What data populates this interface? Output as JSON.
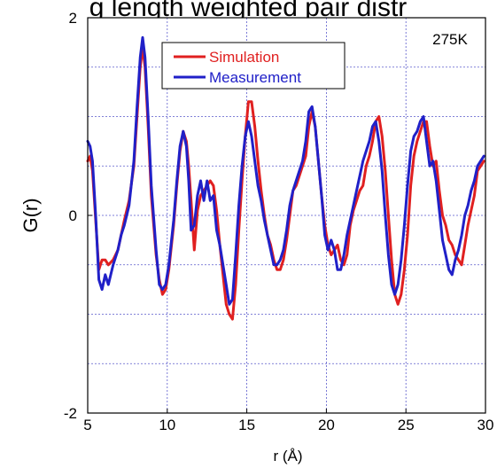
{
  "chart_data": {
    "type": "line",
    "title": "g length weighted pair distr",
    "xlabel": "r (Å)",
    "ylabel": "G(r)",
    "xlim": [
      5,
      30
    ],
    "ylim": [
      -2,
      2
    ],
    "xticks": [
      5,
      10,
      15,
      20,
      25,
      30
    ],
    "xtick_labels": [
      "5",
      "10",
      "15",
      "20",
      "25",
      "30"
    ],
    "yticks": [
      -2,
      0,
      2
    ],
    "ytick_labels": [
      "-2",
      "0",
      "2"
    ],
    "grid": true,
    "grid_x_step": 5,
    "grid_y_step": 0.5,
    "legend_placement": "top-center",
    "annotation": "275K",
    "series": [
      {
        "name": "Simulation",
        "color": "#e02020",
        "x": [
          5,
          5.15,
          5.3,
          5.5,
          5.7,
          5.9,
          6.1,
          6.3,
          6.6,
          6.9,
          7.1,
          7.3,
          7.6,
          7.9,
          8.1,
          8.3,
          8.45,
          8.6,
          8.8,
          9.0,
          9.3,
          9.5,
          9.7,
          9.9,
          10.1,
          10.4,
          10.6,
          10.8,
          11.0,
          11.2,
          11.35,
          11.5,
          11.7,
          11.9,
          12.1,
          12.3,
          12.5,
          12.7,
          12.9,
          13.1,
          13.3,
          13.5,
          13.7,
          13.9,
          14.1,
          14.3,
          14.5,
          14.7,
          14.9,
          15.1,
          15.3,
          15.5,
          15.7,
          15.9,
          16.1,
          16.3,
          16.5,
          16.7,
          16.9,
          17.1,
          17.3,
          17.5,
          17.7,
          17.9,
          18.1,
          18.3,
          18.5,
          18.7,
          18.9,
          19.1,
          19.3,
          19.5,
          19.7,
          19.9,
          20.1,
          20.3,
          20.5,
          20.7,
          20.9,
          21.1,
          21.3,
          21.5,
          21.7,
          21.9,
          22.1,
          22.3,
          22.5,
          22.7,
          22.9,
          23.1,
          23.3,
          23.5,
          23.7,
          23.9,
          24.1,
          24.3,
          24.5,
          24.7,
          24.9,
          25.1,
          25.3,
          25.5,
          25.7,
          25.9,
          26.1,
          26.3,
          26.5,
          26.7,
          26.9,
          27.1,
          27.3,
          27.5,
          27.7,
          27.9,
          28.1,
          28.3,
          28.5,
          28.7,
          28.9,
          29.1,
          29.3,
          29.5,
          29.7,
          29.9
        ],
        "y": [
          0.55,
          0.6,
          0.45,
          -0.05,
          -0.55,
          -0.45,
          -0.45,
          -0.5,
          -0.45,
          -0.35,
          -0.2,
          -0.05,
          0.15,
          0.5,
          1.0,
          1.5,
          1.7,
          1.5,
          0.9,
          0.2,
          -0.4,
          -0.65,
          -0.8,
          -0.75,
          -0.55,
          -0.1,
          0.3,
          0.65,
          0.85,
          0.75,
          0.5,
          0.15,
          -0.35,
          0.05,
          0.2,
          0.25,
          0.3,
          0.35,
          0.3,
          0.05,
          -0.3,
          -0.6,
          -0.9,
          -1.0,
          -1.05,
          -0.7,
          -0.15,
          0.35,
          0.8,
          1.15,
          1.15,
          0.9,
          0.55,
          0.25,
          0.0,
          -0.2,
          -0.3,
          -0.45,
          -0.55,
          -0.55,
          -0.45,
          -0.25,
          0.0,
          0.25,
          0.3,
          0.4,
          0.5,
          0.6,
          0.9,
          1.05,
          0.9,
          0.55,
          0.2,
          -0.1,
          -0.3,
          -0.4,
          -0.35,
          -0.3,
          -0.45,
          -0.5,
          -0.4,
          -0.1,
          0.05,
          0.15,
          0.25,
          0.3,
          0.5,
          0.6,
          0.75,
          0.95,
          1.0,
          0.8,
          0.45,
          0.0,
          -0.45,
          -0.8,
          -0.9,
          -0.8,
          -0.55,
          -0.2,
          0.3,
          0.6,
          0.75,
          0.85,
          0.95,
          0.95,
          0.7,
          0.5,
          0.55,
          0.25,
          0.0,
          -0.1,
          -0.25,
          -0.3,
          -0.4,
          -0.45,
          -0.5,
          -0.3,
          -0.1,
          0.05,
          0.2,
          0.45,
          0.5,
          0.55
        ]
      },
      {
        "name": "Measurement",
        "color": "#2020c8",
        "x": [
          5,
          5.15,
          5.3,
          5.5,
          5.7,
          5.9,
          6.1,
          6.3,
          6.6,
          6.9,
          7.1,
          7.3,
          7.6,
          7.9,
          8.1,
          8.3,
          8.45,
          8.6,
          8.8,
          9.0,
          9.3,
          9.5,
          9.7,
          9.9,
          10.1,
          10.4,
          10.6,
          10.8,
          11.0,
          11.2,
          11.35,
          11.5,
          11.7,
          11.9,
          12.1,
          12.3,
          12.5,
          12.7,
          12.9,
          13.1,
          13.3,
          13.5,
          13.7,
          13.9,
          14.1,
          14.3,
          14.5,
          14.7,
          14.9,
          15.1,
          15.3,
          15.5,
          15.7,
          15.9,
          16.1,
          16.3,
          16.5,
          16.7,
          16.9,
          17.1,
          17.3,
          17.5,
          17.7,
          17.9,
          18.1,
          18.3,
          18.5,
          18.7,
          18.9,
          19.1,
          19.3,
          19.5,
          19.7,
          19.9,
          20.1,
          20.3,
          20.5,
          20.7,
          20.9,
          21.1,
          21.3,
          21.5,
          21.7,
          21.9,
          22.1,
          22.3,
          22.5,
          22.7,
          22.9,
          23.1,
          23.3,
          23.5,
          23.7,
          23.9,
          24.1,
          24.3,
          24.5,
          24.7,
          24.9,
          25.1,
          25.3,
          25.5,
          25.7,
          25.9,
          26.1,
          26.3,
          26.5,
          26.7,
          26.9,
          27.1,
          27.3,
          27.5,
          27.7,
          27.9,
          28.1,
          28.3,
          28.5,
          28.7,
          28.9,
          29.1,
          29.3,
          29.5,
          29.7,
          29.9
        ],
        "y": [
          0.75,
          0.7,
          0.55,
          0.0,
          -0.65,
          -0.75,
          -0.6,
          -0.7,
          -0.5,
          -0.35,
          -0.2,
          -0.1,
          0.1,
          0.55,
          1.1,
          1.6,
          1.8,
          1.6,
          1.0,
          0.3,
          -0.35,
          -0.7,
          -0.75,
          -0.7,
          -0.5,
          -0.05,
          0.35,
          0.7,
          0.85,
          0.7,
          0.35,
          -0.15,
          -0.1,
          0.2,
          0.35,
          0.15,
          0.35,
          0.15,
          0.2,
          -0.15,
          -0.3,
          -0.5,
          -0.7,
          -0.9,
          -0.85,
          -0.4,
          0.1,
          0.5,
          0.8,
          0.95,
          0.8,
          0.55,
          0.3,
          0.15,
          -0.05,
          -0.2,
          -0.35,
          -0.5,
          -0.5,
          -0.45,
          -0.35,
          -0.15,
          0.1,
          0.25,
          0.35,
          0.45,
          0.55,
          0.75,
          1.05,
          1.1,
          0.9,
          0.55,
          0.2,
          -0.2,
          -0.35,
          -0.25,
          -0.35,
          -0.55,
          -0.55,
          -0.4,
          -0.2,
          -0.05,
          0.1,
          0.25,
          0.4,
          0.55,
          0.65,
          0.75,
          0.9,
          0.95,
          0.75,
          0.45,
          0.0,
          -0.4,
          -0.7,
          -0.8,
          -0.7,
          -0.45,
          -0.1,
          0.3,
          0.65,
          0.8,
          0.85,
          0.95,
          1.0,
          0.75,
          0.5,
          0.55,
          0.35,
          0.05,
          -0.25,
          -0.4,
          -0.55,
          -0.6,
          -0.45,
          -0.35,
          -0.2,
          0.0,
          0.1,
          0.25,
          0.35,
          0.5,
          0.55,
          0.6
        ]
      }
    ]
  }
}
